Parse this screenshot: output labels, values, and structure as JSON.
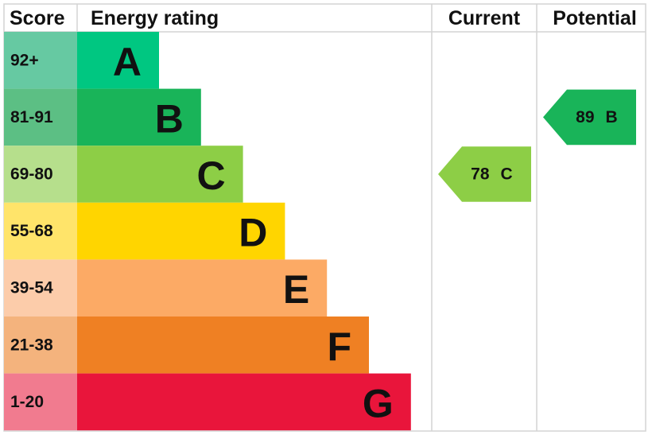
{
  "header": {
    "score": "Score",
    "rating": "Energy rating",
    "current": "Current",
    "potential": "Potential"
  },
  "bands": [
    {
      "score": "92+",
      "letter": "A",
      "color": "#00c781",
      "light": "#66c9a2"
    },
    {
      "score": "81-91",
      "letter": "B",
      "color": "#19b459",
      "light": "#5cbf84"
    },
    {
      "score": "69-80",
      "letter": "C",
      "color": "#8dce46",
      "light": "#b6df8c"
    },
    {
      "score": "55-68",
      "letter": "D",
      "color": "#ffd500",
      "light": "#ffe46a"
    },
    {
      "score": "39-54",
      "letter": "E",
      "color": "#fcaa65",
      "light": "#fcccaa"
    },
    {
      "score": "21-38",
      "letter": "F",
      "color": "#ef8023",
      "light": "#f4b37d"
    },
    {
      "score": "1-20",
      "letter": "G",
      "color": "#e9153b",
      "light": "#f17b8f"
    }
  ],
  "current": {
    "score": 78,
    "band": "C"
  },
  "potential": {
    "score": 89,
    "band": "B"
  }
}
